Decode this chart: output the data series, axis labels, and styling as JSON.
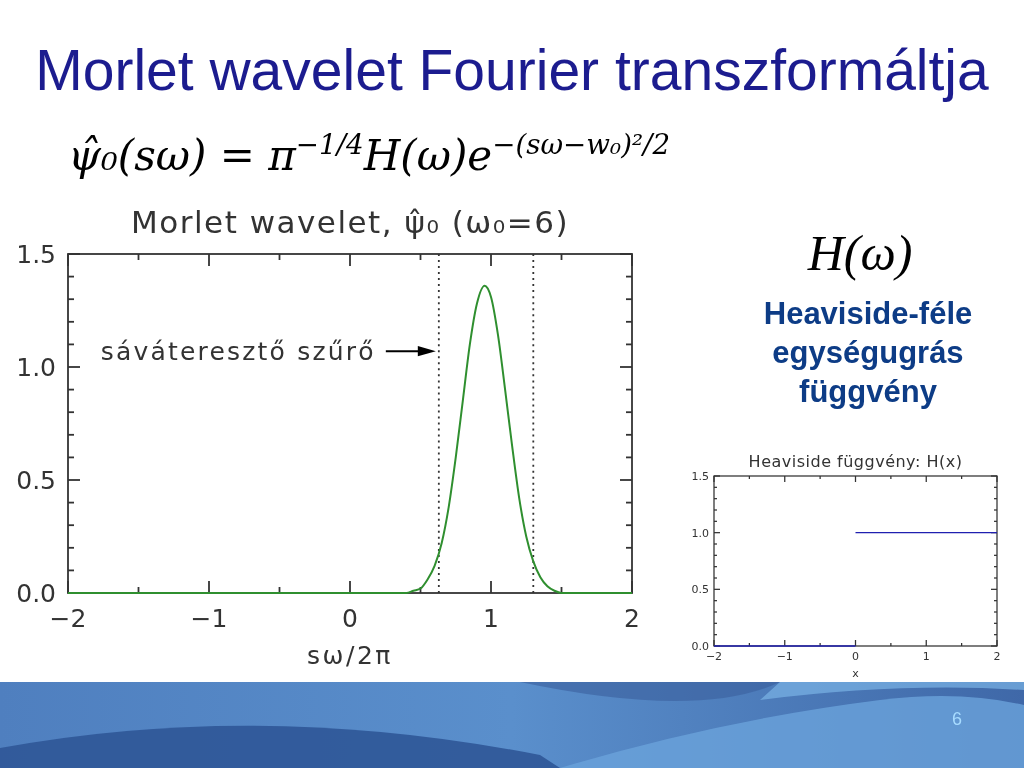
{
  "chart_data": [
    {
      "type": "other",
      "title": "Morlet wavelet Fourier transzformáltja",
      "annotations": [
        "ψ̂₀(sω) = π$^{−1/4}$H(ω)e$^{−(sω−w₀)²/2}$",
        "6"
      ]
    },
    {
      "type": "line",
      "title": "Morlet wavelet, ψ̂₀ (ω₀=6)",
      "xlabel": "sω/2π",
      "xlim": [
        -2,
        2
      ],
      "ylim": [
        0,
        1.5
      ],
      "xticks": [
        {
          "value": -2,
          "label": "−2"
        },
        {
          "value": -1.5,
          "label": null
        },
        {
          "value": -1,
          "label": "−1"
        },
        {
          "value": -0.5,
          "label": null
        },
        0,
        {
          "value": 0.5,
          "label": null
        },
        1,
        {
          "value": 1.5,
          "label": null
        },
        2
      ],
      "yticks": [
        {
          "value": 0,
          "label": "0.0"
        },
        {
          "value": 0.1,
          "label": null
        },
        {
          "value": 0.2,
          "label": null
        },
        {
          "value": 0.3,
          "label": null
        },
        {
          "value": 0.4,
          "label": null
        },
        {
          "value": 0.5,
          "label": "0.5"
        },
        {
          "value": 0.6,
          "label": null
        },
        {
          "value": 0.7,
          "label": null
        },
        {
          "value": 0.8,
          "label": null
        },
        {
          "value": 0.9,
          "label": null
        },
        {
          "value": 1,
          "label": "1.0"
        },
        {
          "value": 1.1,
          "label": null
        },
        {
          "value": 1.2,
          "label": null
        },
        {
          "value": 1.3,
          "label": null
        },
        {
          "value": 1.4,
          "label": null
        },
        {
          "value": 1.5,
          "label": "1.5"
        }
      ],
      "series": [
        {
          "color": "#2f8f2f",
          "x": [
            -2,
            0.4,
            0.45,
            0.5,
            0.55,
            0.6,
            0.65,
            0.7,
            0.75,
            0.8,
            0.85,
            0.9,
            0.955,
            1.0,
            1.05,
            1.1,
            1.15,
            1.2,
            1.25,
            1.3,
            1.35,
            1.4,
            1.45,
            1.5,
            2
          ],
          "values": [
            0,
            0,
            0.01,
            0.02,
            0.06,
            0.12,
            0.22,
            0.38,
            0.6,
            0.85,
            1.1,
            1.28,
            1.36,
            1.31,
            1.14,
            0.9,
            0.65,
            0.42,
            0.25,
            0.14,
            0.07,
            0.03,
            0.01,
            0,
            0
          ]
        }
      ],
      "ref_lines": [
        {
          "axis": "x",
          "value": 0.63,
          "color": "#333333",
          "line_style": "dotted"
        },
        {
          "axis": "x",
          "value": 1.3,
          "color": "#333333",
          "line_style": "dotted"
        }
      ],
      "annotations": [
        {
          "text": "sáváteresztő szűrő",
          "x": 0.63,
          "y": 1.07
        }
      ]
    },
    {
      "type": "other",
      "title": "H(ω)",
      "annotations": [
        "Heaviside-féle egységugrás függvény"
      ]
    },
    {
      "type": "line",
      "title": "Heaviside függvény: H(x)",
      "xlabel": "x",
      "xlim": [
        -2,
        2
      ],
      "ylim": [
        0,
        1.5
      ],
      "xticks": [
        {
          "value": -2,
          "label": "−2"
        },
        {
          "value": -1.5,
          "label": null
        },
        {
          "value": -1,
          "label": "−1"
        },
        {
          "value": -0.5,
          "label": null
        },
        0,
        {
          "value": 0.5,
          "label": null
        },
        1,
        {
          "value": 1.5,
          "label": null
        },
        2
      ],
      "yticks": [
        {
          "value": 0,
          "label": "0.0"
        },
        {
          "value": 0.1,
          "label": null
        },
        {
          "value": 0.2,
          "label": null
        },
        {
          "value": 0.3,
          "label": null
        },
        {
          "value": 0.4,
          "label": null
        },
        {
          "value": 0.5,
          "label": "0.5"
        },
        {
          "value": 0.6,
          "label": null
        },
        {
          "value": 0.7,
          "label": null
        },
        {
          "value": 0.8,
          "label": null
        },
        {
          "value": 0.9,
          "label": null
        },
        {
          "value": 1,
          "label": "1.0"
        },
        {
          "value": 1.1,
          "label": null
        },
        {
          "value": 1.2,
          "label": null
        },
        {
          "value": 1.3,
          "label": null
        },
        {
          "value": 1.4,
          "label": null
        },
        {
          "value": 1.5,
          "label": "1.5"
        }
      ],
      "series": [
        {
          "color": "#2020b0",
          "x": [
            -2,
            0
          ],
          "values": [
            0,
            0
          ]
        },
        {
          "color": "#2020b0",
          "x": [
            0,
            2
          ],
          "values": [
            1,
            1
          ]
        }
      ]
    }
  ]
}
